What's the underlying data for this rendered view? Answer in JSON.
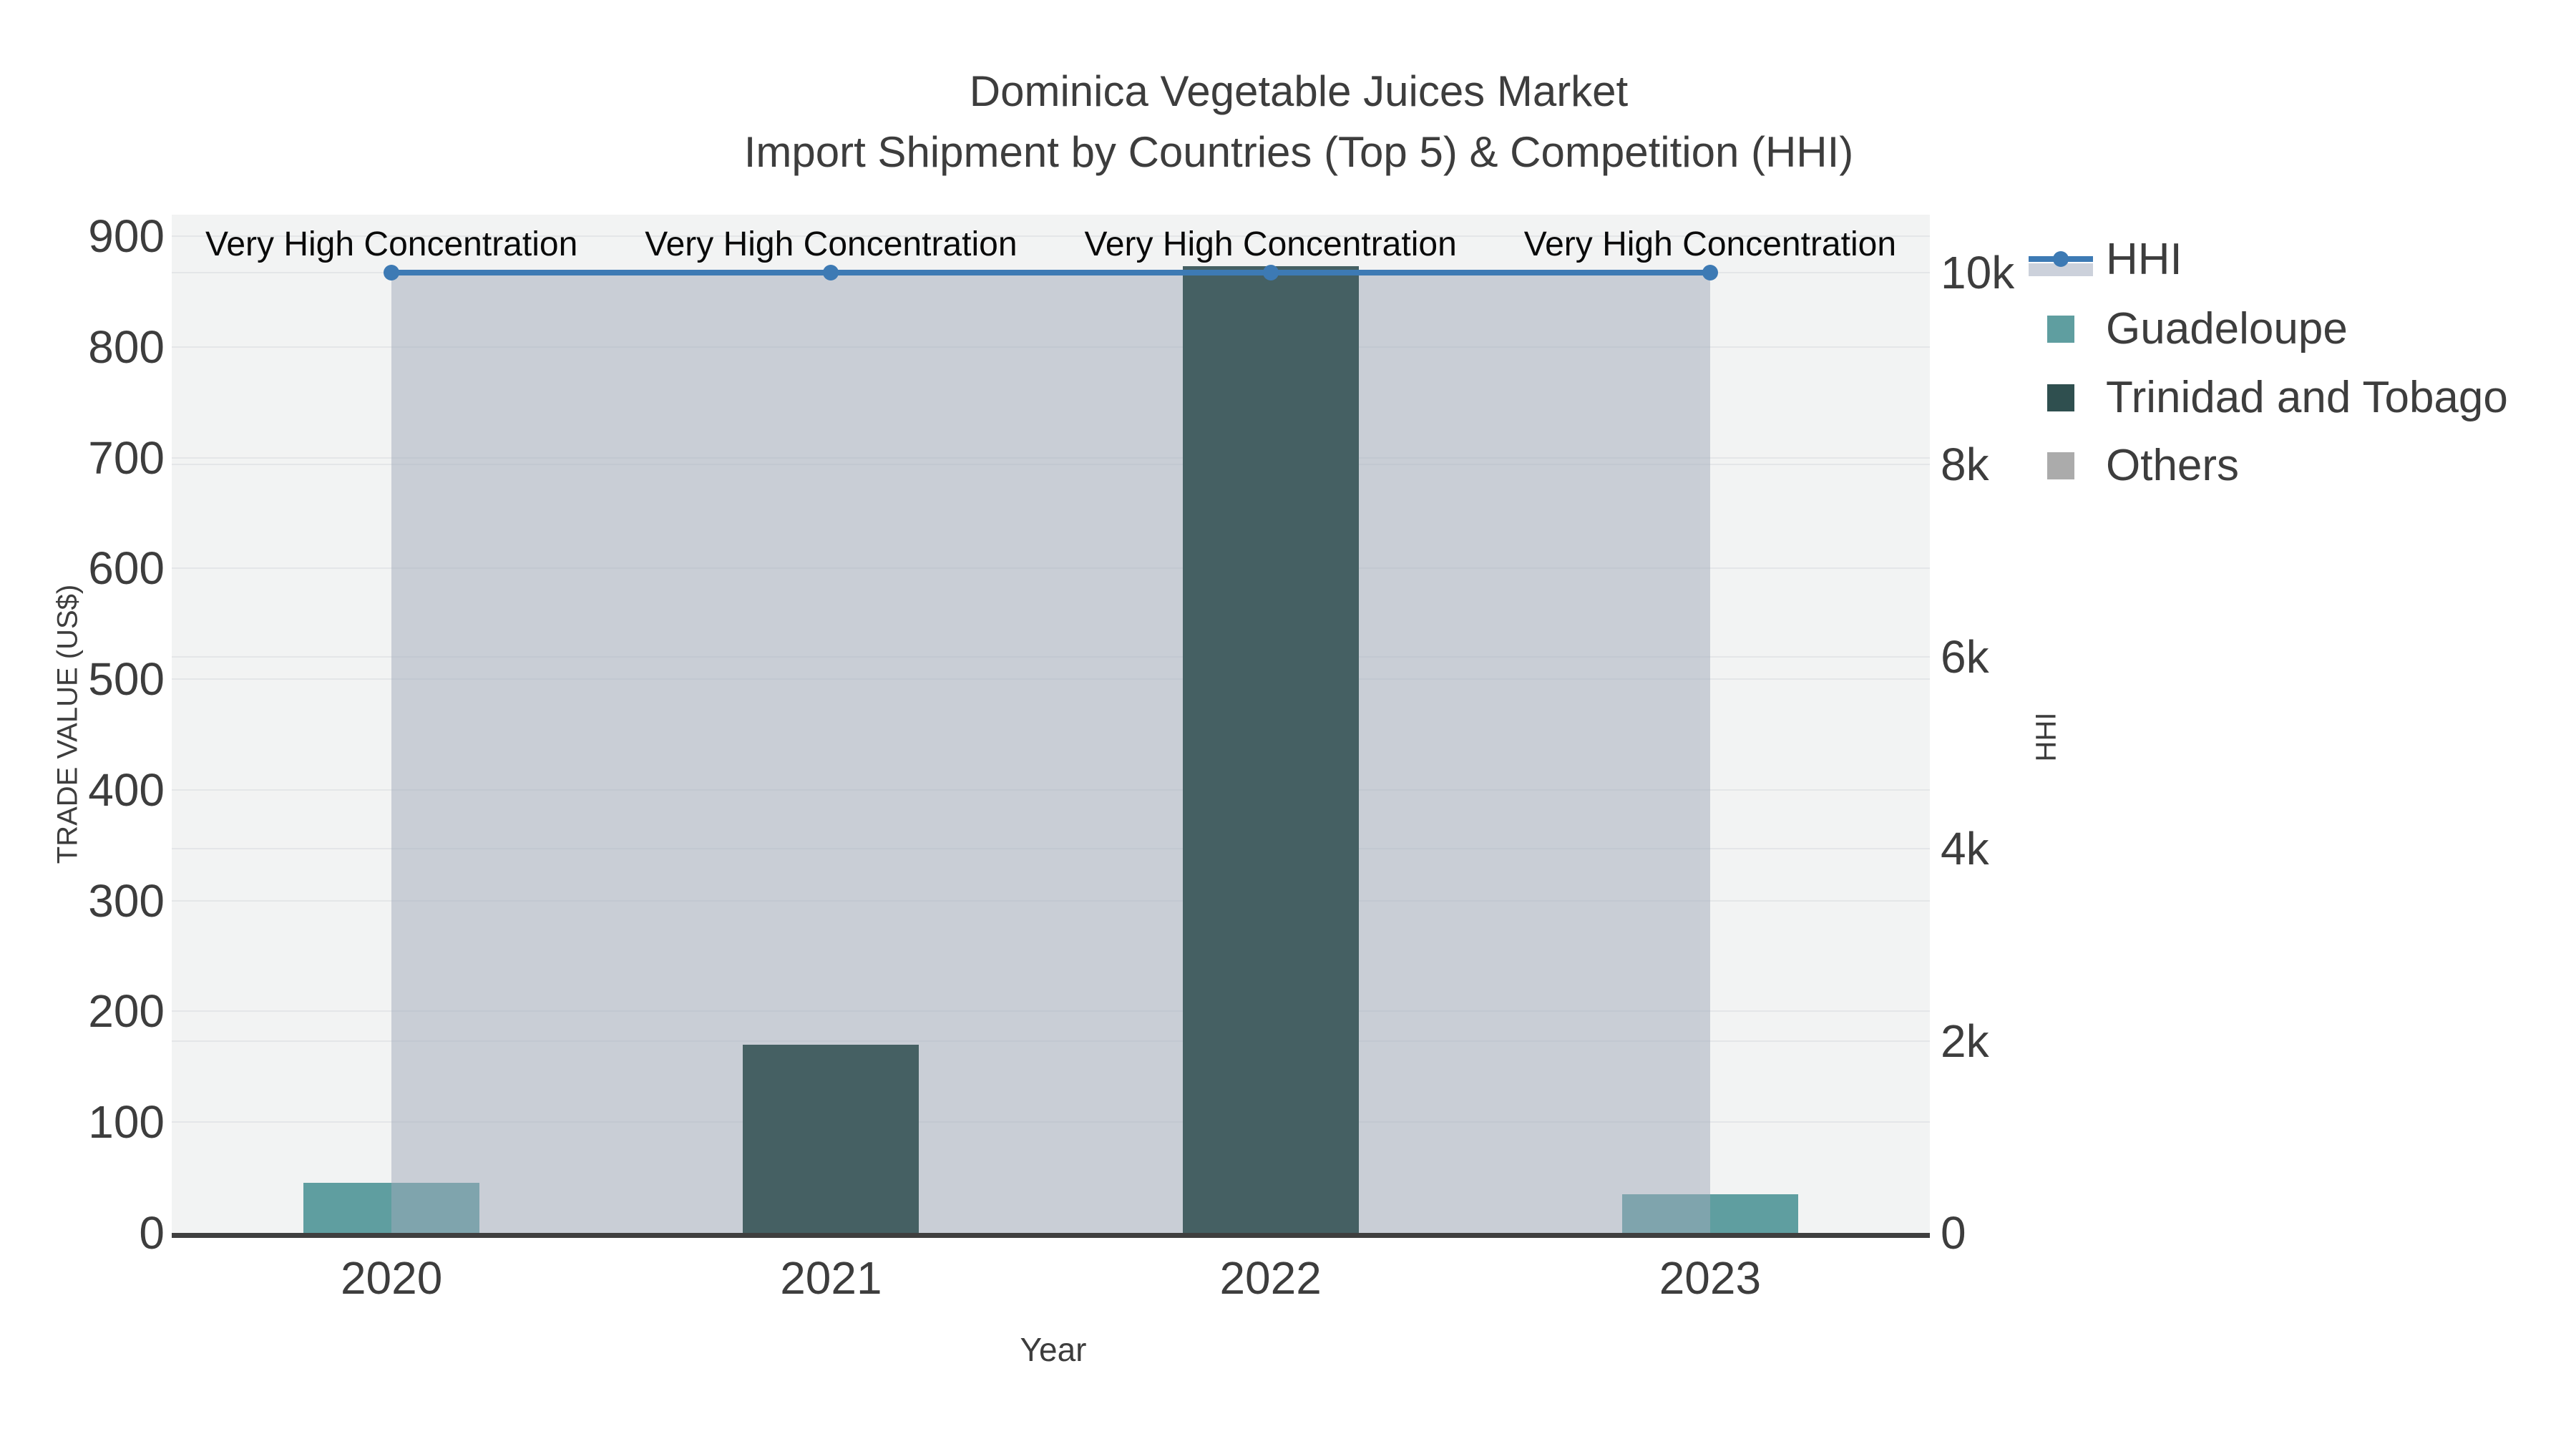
{
  "figure": {
    "title": "Dominica Vegetable Juices Market",
    "subtitle": "Import Shipment by Countries (Top 5) & Competition (HHI)"
  },
  "axes": {
    "x": {
      "title": "Year",
      "ticks": [
        "2020",
        "2021",
        "2022",
        "2023"
      ]
    },
    "y_left": {
      "title": "TRADE VALUE (US$)",
      "tick_values": [
        0,
        100,
        200,
        300,
        400,
        500,
        600,
        700,
        800,
        900
      ],
      "tick_labels": [
        "0",
        "100",
        "200",
        "300",
        "400",
        "500",
        "600",
        "700",
        "800",
        "900"
      ]
    },
    "y_right": {
      "title": "HHI",
      "tick_values": [
        0,
        2000,
        4000,
        6000,
        8000,
        10000
      ],
      "tick_labels": [
        "0",
        "2k",
        "4k",
        "6k",
        "8k",
        "10k"
      ]
    }
  },
  "chart_data": {
    "type": "bar",
    "subtype": "dual-axis bar + line",
    "title": "Dominica Vegetable Juices Market",
    "subtitle": "Import Shipment by Countries (Top 5) & Competition (HHI)",
    "xlabel": "Year",
    "ylabel": "TRADE VALUE (US$)",
    "ylabel2": "HHI",
    "ylim": [
      0,
      900
    ],
    "y2lim": [
      0,
      10000
    ],
    "grid": true,
    "legend_position": "right",
    "categories": [
      "2020",
      "2021",
      "2022",
      "2023"
    ],
    "series": [
      {
        "name": "Guadeloupe",
        "type": "bar",
        "axis": "left",
        "color": "#5F9EA0",
        "legend_color": "#5F9EA0",
        "values": [
          45,
          0,
          0,
          35
        ]
      },
      {
        "name": "Trinidad and Tobago",
        "type": "bar",
        "axis": "left",
        "color": "#456063",
        "legend_color": "#2F4F4F",
        "values": [
          0,
          170,
          873,
          0
        ]
      },
      {
        "name": "Others",
        "type": "bar",
        "axis": "left",
        "color": "#ABABAB",
        "legend_color": "#ABABAB",
        "values": [
          0,
          0,
          0,
          0
        ]
      },
      {
        "name": "HHI",
        "type": "line",
        "axis": "right",
        "color": "#3D7AB4",
        "fill_color": "rgba(160,170,186,0.5)",
        "legend_band_color": "#CCD1DB",
        "values": [
          10000,
          10000,
          10000,
          10000
        ]
      }
    ],
    "annotations": [
      "Very High Concentration",
      "Very High Concentration",
      "Very High Concentration",
      "Very High Concentration"
    ]
  }
}
